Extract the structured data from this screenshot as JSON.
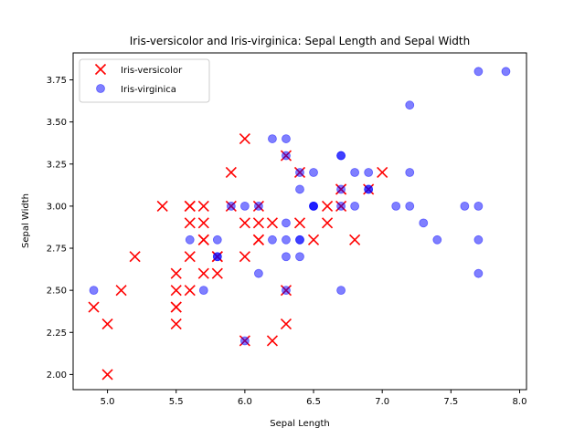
{
  "chart_data": {
    "type": "scatter",
    "title": "Iris-versicolor and Iris-virginica: Sepal Length and Sepal Width",
    "xlabel": "Sepal Length",
    "ylabel": "Sepal Width",
    "xlim": [
      4.75,
      8.05
    ],
    "ylim": [
      1.91,
      3.91
    ],
    "xticks": [
      5.0,
      5.5,
      6.0,
      6.5,
      7.0,
      7.5,
      8.0
    ],
    "xtick_labels": [
      "5.0",
      "5.5",
      "6.0",
      "6.5",
      "7.0",
      "7.5",
      "8.0"
    ],
    "yticks": [
      2.0,
      2.25,
      2.5,
      2.75,
      3.0,
      3.25,
      3.5,
      3.75
    ],
    "ytick_labels": [
      "2.00",
      "2.25",
      "2.50",
      "2.75",
      "3.00",
      "3.25",
      "3.50",
      "3.75"
    ],
    "grid": false,
    "legend_position": "top-left",
    "series": [
      {
        "name": "Iris-versicolor",
        "marker": "x",
        "color": "#ff0000",
        "points": [
          [
            7.0,
            3.2
          ],
          [
            6.4,
            3.2
          ],
          [
            6.9,
            3.1
          ],
          [
            5.5,
            2.3
          ],
          [
            6.5,
            2.8
          ],
          [
            5.7,
            2.8
          ],
          [
            6.3,
            3.3
          ],
          [
            4.9,
            2.4
          ],
          [
            6.6,
            2.9
          ],
          [
            5.2,
            2.7
          ],
          [
            5.0,
            2.0
          ],
          [
            5.9,
            3.0
          ],
          [
            6.0,
            2.2
          ],
          [
            6.1,
            2.9
          ],
          [
            5.6,
            2.9
          ],
          [
            6.7,
            3.1
          ],
          [
            5.6,
            3.0
          ],
          [
            5.8,
            2.7
          ],
          [
            6.2,
            2.2
          ],
          [
            5.6,
            2.5
          ],
          [
            5.9,
            3.2
          ],
          [
            6.1,
            2.8
          ],
          [
            6.3,
            2.5
          ],
          [
            6.1,
            2.8
          ],
          [
            6.4,
            2.9
          ],
          [
            6.6,
            3.0
          ],
          [
            6.8,
            2.8
          ],
          [
            6.7,
            3.0
          ],
          [
            6.0,
            2.9
          ],
          [
            5.7,
            2.6
          ],
          [
            5.5,
            2.4
          ],
          [
            5.5,
            2.4
          ],
          [
            5.8,
            2.7
          ],
          [
            6.0,
            2.7
          ],
          [
            5.4,
            3.0
          ],
          [
            6.0,
            3.4
          ],
          [
            6.7,
            3.1
          ],
          [
            6.3,
            2.3
          ],
          [
            5.6,
            3.0
          ],
          [
            5.5,
            2.5
          ],
          [
            5.5,
            2.6
          ],
          [
            6.1,
            3.0
          ],
          [
            5.8,
            2.6
          ],
          [
            5.0,
            2.3
          ],
          [
            5.6,
            2.7
          ],
          [
            5.7,
            3.0
          ],
          [
            5.7,
            2.9
          ],
          [
            6.2,
            2.9
          ],
          [
            5.1,
            2.5
          ],
          [
            5.7,
            2.8
          ]
        ]
      },
      {
        "name": "Iris-virginica",
        "marker": "o",
        "color": "#0000ff",
        "alpha": 0.5,
        "points": [
          [
            6.3,
            3.3
          ],
          [
            5.8,
            2.7
          ],
          [
            7.1,
            3.0
          ],
          [
            6.3,
            2.9
          ],
          [
            6.5,
            3.0
          ],
          [
            7.6,
            3.0
          ],
          [
            4.9,
            2.5
          ],
          [
            7.3,
            2.9
          ],
          [
            6.7,
            2.5
          ],
          [
            7.2,
            3.6
          ],
          [
            6.5,
            3.2
          ],
          [
            6.4,
            2.7
          ],
          [
            6.8,
            3.0
          ],
          [
            5.7,
            2.5
          ],
          [
            5.8,
            2.8
          ],
          [
            6.4,
            3.2
          ],
          [
            6.5,
            3.0
          ],
          [
            7.7,
            3.8
          ],
          [
            7.7,
            2.6
          ],
          [
            6.0,
            2.2
          ],
          [
            6.9,
            3.2
          ],
          [
            5.6,
            2.8
          ],
          [
            7.7,
            2.8
          ],
          [
            6.3,
            2.7
          ],
          [
            6.7,
            3.3
          ],
          [
            7.2,
            3.2
          ],
          [
            6.2,
            2.8
          ],
          [
            6.1,
            3.0
          ],
          [
            6.4,
            2.8
          ],
          [
            7.2,
            3.0
          ],
          [
            7.4,
            2.8
          ],
          [
            7.9,
            3.8
          ],
          [
            6.4,
            2.8
          ],
          [
            6.3,
            2.8
          ],
          [
            6.1,
            2.6
          ],
          [
            7.7,
            3.0
          ],
          [
            6.3,
            3.4
          ],
          [
            6.4,
            3.1
          ],
          [
            6.0,
            3.0
          ],
          [
            6.9,
            3.1
          ],
          [
            6.7,
            3.1
          ],
          [
            6.9,
            3.1
          ],
          [
            5.8,
            2.7
          ],
          [
            6.8,
            3.2
          ],
          [
            6.7,
            3.3
          ],
          [
            6.7,
            3.0
          ],
          [
            6.3,
            2.5
          ],
          [
            6.5,
            3.0
          ],
          [
            6.2,
            3.4
          ],
          [
            5.9,
            3.0
          ]
        ]
      }
    ]
  }
}
